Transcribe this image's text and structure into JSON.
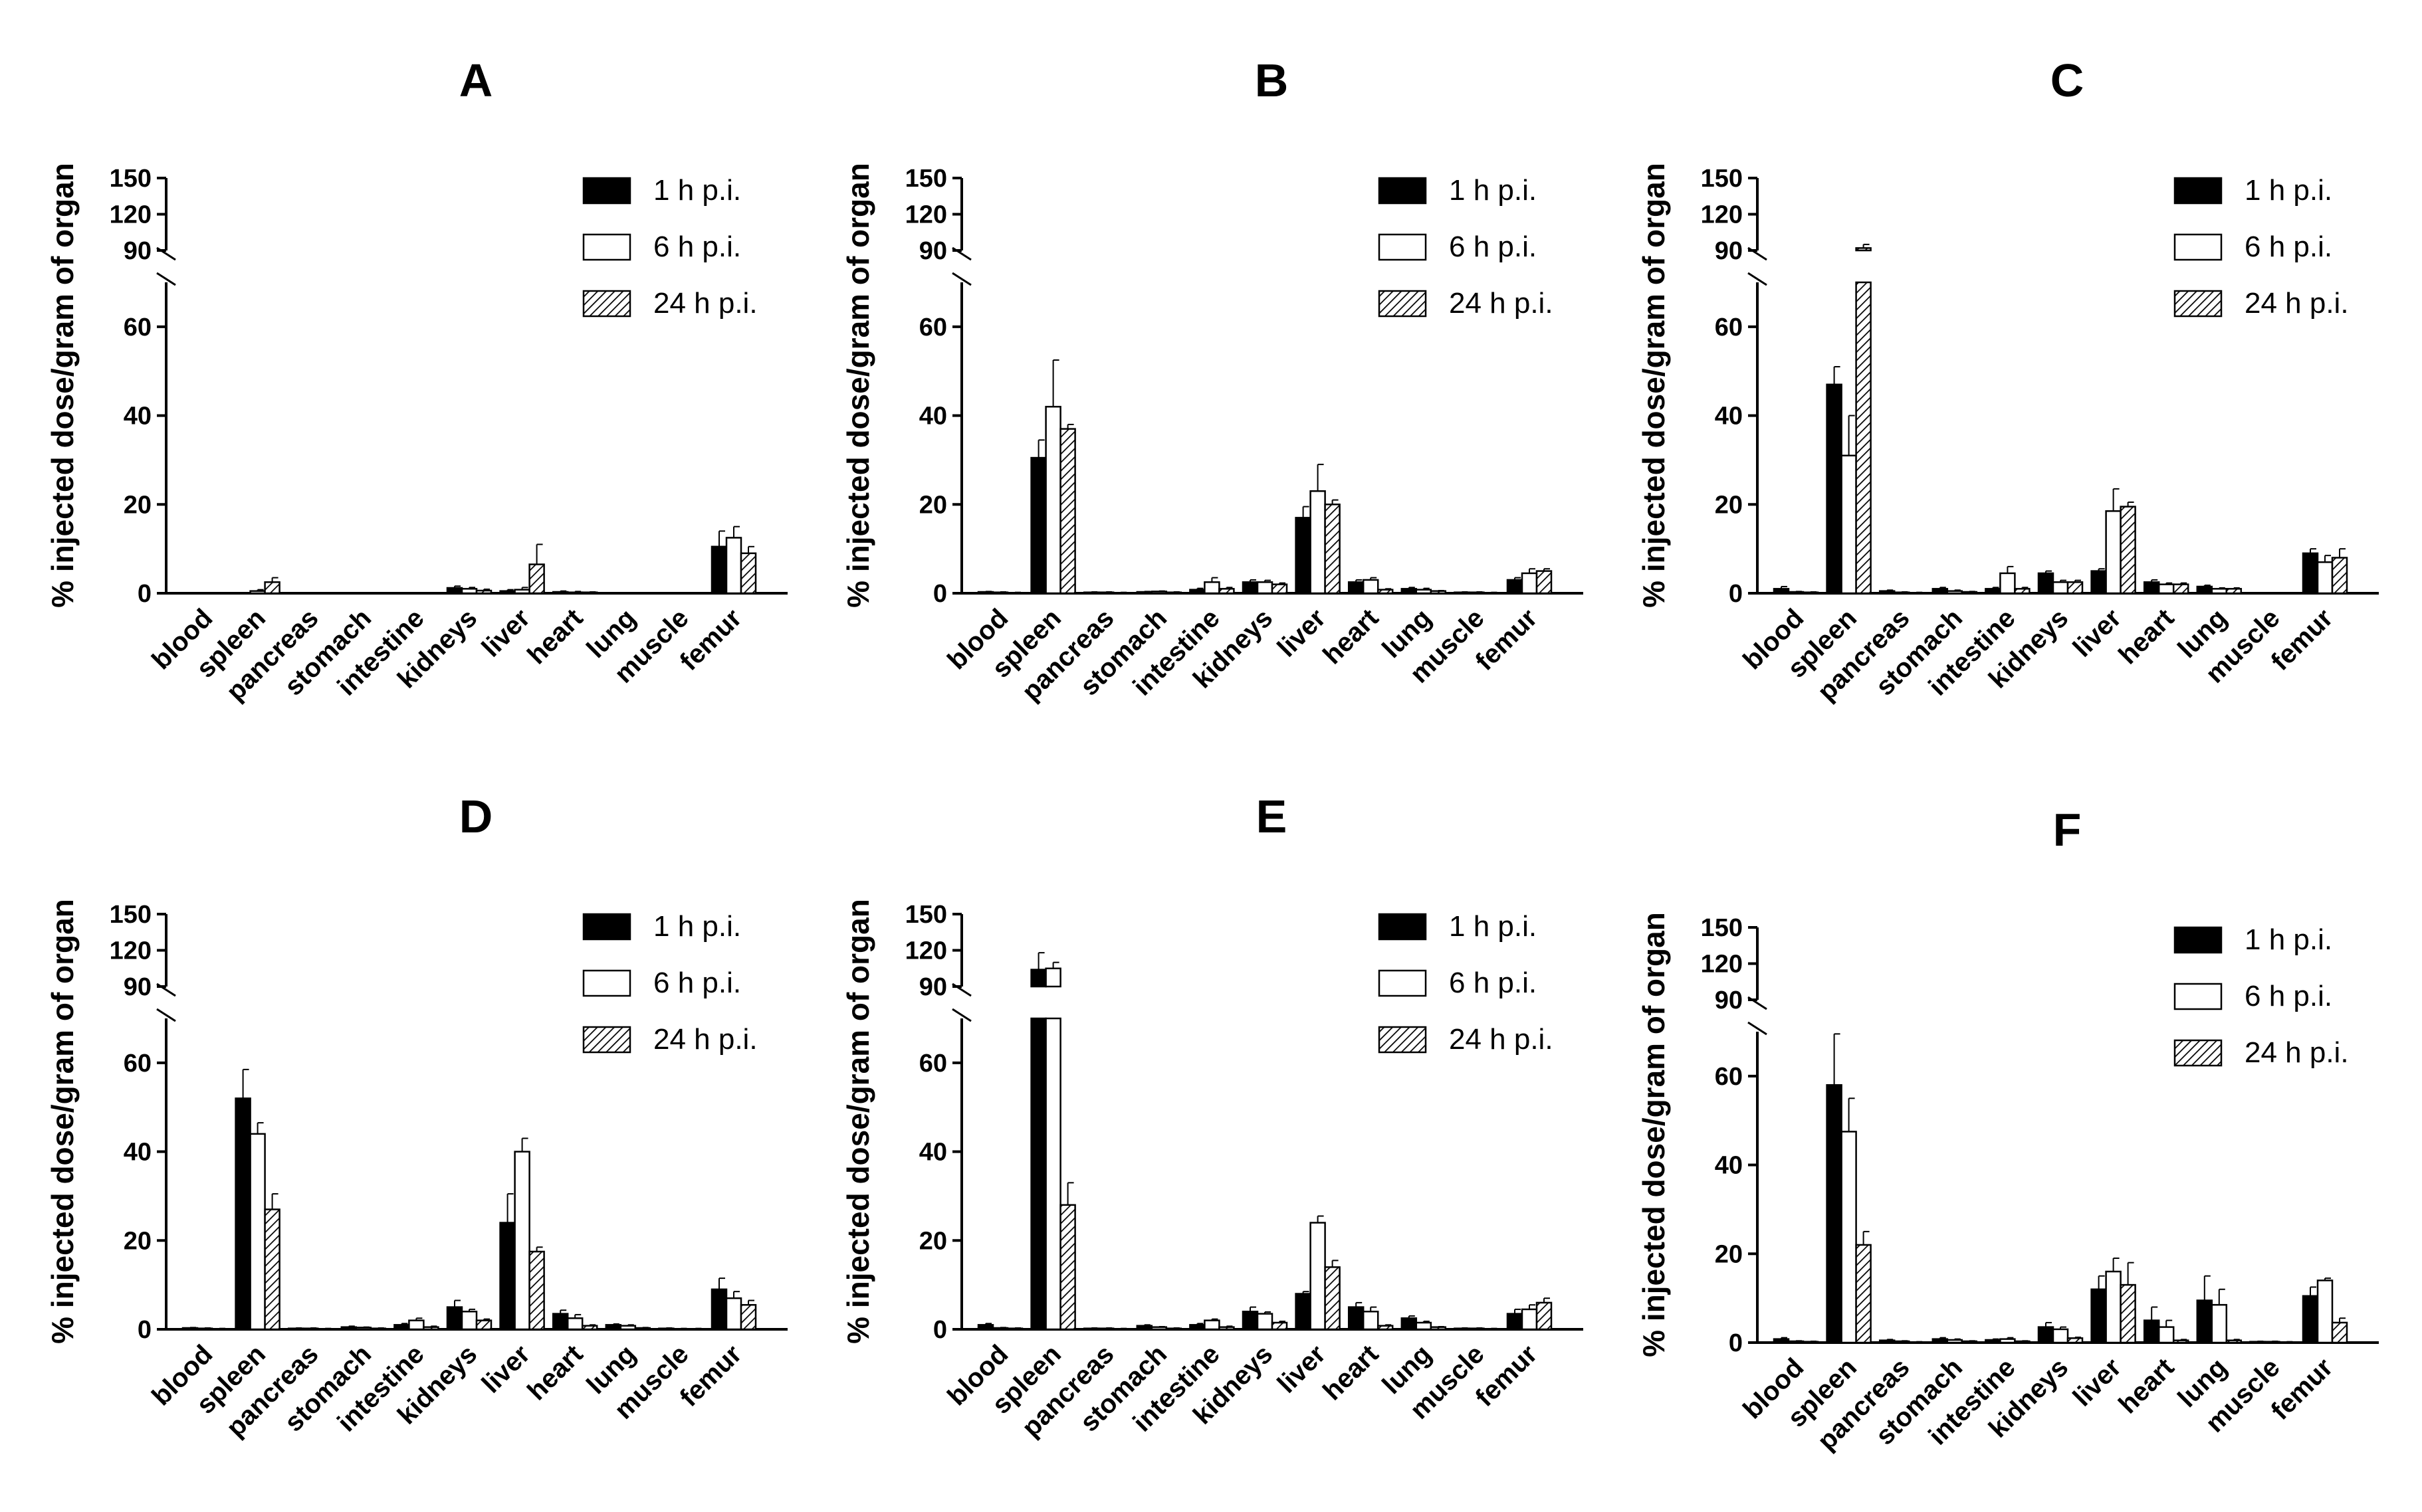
{
  "chart_data": [
    {
      "type": "bar",
      "title": "A",
      "ylabel": "% injected dose/gram of organ",
      "categories": [
        "blood",
        "spleen",
        "pancreas",
        "stomach",
        "intestine",
        "kidneys",
        "liver",
        "heart",
        "lung",
        "muscle",
        "femur"
      ],
      "ylim_lower": [
        0,
        70
      ],
      "ylim_upper": [
        90,
        150
      ],
      "yticks_lower": [
        "0",
        "20",
        "40",
        "60"
      ],
      "yticks_upper": [
        "90",
        "120",
        "150"
      ],
      "series": [
        {
          "name": "1 h p.i.",
          "values": [
            0,
            0,
            0,
            0,
            0,
            1.2,
            0.5,
            0.3,
            0,
            0,
            10.5
          ],
          "errors": [
            0,
            0,
            0,
            0,
            0,
            0.4,
            0.3,
            0.2,
            0,
            0,
            3.5
          ]
        },
        {
          "name": "6 h p.i.",
          "values": [
            0,
            0.5,
            0,
            0,
            0,
            1.0,
            0.8,
            0.2,
            0,
            0,
            12.5
          ],
          "errors": [
            0,
            0.3,
            0,
            0,
            0,
            0.3,
            0.5,
            0.2,
            0,
            0,
            2.5
          ]
        },
        {
          "name": "24 h p.i.",
          "values": [
            0,
            2.5,
            0,
            0,
            0,
            0.6,
            6.5,
            0.2,
            0,
            0,
            9.0
          ],
          "errors": [
            0,
            1.0,
            0,
            0,
            0,
            0.3,
            4.5,
            0.1,
            0,
            0,
            1.5
          ]
        }
      ]
    },
    {
      "type": "bar",
      "title": "B",
      "ylabel": "% injected dose/gram of organ",
      "categories": [
        "blood",
        "spleen",
        "pancreas",
        "stomach",
        "intestine",
        "kidneys",
        "liver",
        "heart",
        "lung",
        "muscle",
        "femur"
      ],
      "ylim_lower": [
        0,
        70
      ],
      "ylim_upper": [
        90,
        150
      ],
      "yticks_lower": [
        "0",
        "20",
        "40",
        "60"
      ],
      "yticks_upper": [
        "90",
        "120",
        "150"
      ],
      "series": [
        {
          "name": "1 h p.i.",
          "values": [
            0.3,
            30.5,
            0.2,
            0.3,
            0.8,
            2.5,
            17.0,
            2.5,
            1.0,
            0.2,
            3.0
          ],
          "errors": [
            0.1,
            4.0,
            0.1,
            0.1,
            0.3,
            0.5,
            2.5,
            0.5,
            0.3,
            0.1,
            0.5
          ]
        },
        {
          "name": "6 h p.i.",
          "values": [
            0.2,
            42.0,
            0.2,
            0.4,
            2.5,
            2.5,
            23.0,
            3.0,
            0.8,
            0.2,
            4.5
          ],
          "errors": [
            0.1,
            10.5,
            0.1,
            0.1,
            1.0,
            0.4,
            6.0,
            0.5,
            0.3,
            0.1,
            1.0
          ]
        },
        {
          "name": "24 h p.i.",
          "values": [
            0.1,
            37.0,
            0.1,
            0.2,
            1.0,
            2.0,
            20.0,
            0.8,
            0.5,
            0.1,
            5.0
          ],
          "errors": [
            0.1,
            1.0,
            0.1,
            0.1,
            0.3,
            0.3,
            1.0,
            0.2,
            0.1,
            0.1,
            0.5
          ]
        }
      ]
    },
    {
      "type": "bar",
      "title": "C",
      "ylabel": "% injected dose/gram of organ",
      "categories": [
        "blood",
        "spleen",
        "pancreas",
        "stomach",
        "intestine",
        "kidneys",
        "liver",
        "heart",
        "lung",
        "muscle",
        "femur"
      ],
      "ylim_lower": [
        0,
        70
      ],
      "ylim_upper": [
        90,
        150
      ],
      "yticks_lower": [
        "0",
        "20",
        "40",
        "60"
      ],
      "yticks_upper": [
        "90",
        "120",
        "150"
      ],
      "series": [
        {
          "name": "1 h p.i.",
          "values": [
            1.0,
            47.0,
            0.5,
            1.0,
            1.0,
            4.5,
            5.0,
            2.5,
            1.5,
            0,
            9.0
          ],
          "errors": [
            0.5,
            4.0,
            0.2,
            0.3,
            0.3,
            0.5,
            0.5,
            0.5,
            0.3,
            0,
            1.0
          ]
        },
        {
          "name": "6 h p.i.",
          "values": [
            0.3,
            31.0,
            0.2,
            0.5,
            4.5,
            2.5,
            18.5,
            2.0,
            1.0,
            0,
            7.0
          ],
          "errors": [
            0.1,
            9.0,
            0.1,
            0.2,
            1.5,
            0.4,
            5.0,
            0.3,
            0.2,
            0,
            1.5
          ]
        },
        {
          "name": "24 h p.i.",
          "values": [
            0.2,
            92.0,
            0.1,
            0.3,
            1.0,
            2.5,
            19.5,
            2.0,
            1.0,
            0,
            8.0
          ],
          "errors": [
            0.1,
            3.0,
            0.1,
            0.1,
            0.3,
            0.4,
            1.0,
            0.3,
            0.2,
            0,
            2.0
          ]
        }
      ]
    },
    {
      "type": "bar",
      "title": "D",
      "ylabel": "% injected dose/gram of organ",
      "categories": [
        "blood",
        "spleen",
        "pancreas",
        "stomach",
        "intestine",
        "kidneys",
        "liver",
        "heart",
        "lung",
        "muscle",
        "femur"
      ],
      "ylim_lower": [
        0,
        70
      ],
      "ylim_upper": [
        90,
        150
      ],
      "yticks_lower": [
        "0",
        "20",
        "40",
        "60"
      ],
      "yticks_upper": [
        "90",
        "120",
        "150"
      ],
      "series": [
        {
          "name": "1 h p.i.",
          "values": [
            0.3,
            52.0,
            0.2,
            0.5,
            1.0,
            5.0,
            24.0,
            3.5,
            1.0,
            0.2,
            9.0
          ],
          "errors": [
            0.1,
            6.5,
            0.1,
            0.2,
            0.3,
            1.5,
            6.5,
            0.8,
            0.2,
            0.1,
            2.5
          ]
        },
        {
          "name": "6 h p.i.",
          "values": [
            0.2,
            44.0,
            0.2,
            0.4,
            2.0,
            4.0,
            40.0,
            2.5,
            0.8,
            0.1,
            7.0
          ],
          "errors": [
            0.1,
            2.5,
            0.1,
            0.1,
            0.5,
            0.5,
            3.0,
            0.8,
            0.2,
            0.1,
            1.5
          ]
        },
        {
          "name": "24 h p.i.",
          "values": [
            0.1,
            27.0,
            0.1,
            0.2,
            0.5,
            2.0,
            17.5,
            0.8,
            0.3,
            0.1,
            5.5
          ],
          "errors": [
            0.1,
            3.5,
            0.1,
            0.1,
            0.2,
            0.3,
            1.0,
            0.2,
            0.1,
            0.1,
            1.0
          ]
        }
      ]
    },
    {
      "type": "bar",
      "title": "E",
      "ylabel": "% injected dose/gram of organ",
      "categories": [
        "blood",
        "spleen",
        "pancreas",
        "stomach",
        "intestine",
        "kidneys",
        "liver",
        "heart",
        "lung",
        "muscle",
        "femur"
      ],
      "ylim_lower": [
        0,
        70
      ],
      "ylim_upper": [
        90,
        150
      ],
      "yticks_lower": [
        "0",
        "20",
        "40",
        "60"
      ],
      "yticks_upper": [
        "90",
        "120",
        "150"
      ],
      "series": [
        {
          "name": "1 h p.i.",
          "values": [
            1.0,
            104.0,
            0.2,
            0.8,
            1.0,
            4.0,
            8.0,
            5.0,
            2.5,
            0.2,
            3.5
          ],
          "errors": [
            0.3,
            14.0,
            0.1,
            0.2,
            0.3,
            1.0,
            0.5,
            1.0,
            0.5,
            0.1,
            1.0
          ]
        },
        {
          "name": "6 h p.i.",
          "values": [
            0.3,
            105.0,
            0.2,
            0.5,
            2.0,
            3.5,
            24.0,
            4.0,
            1.5,
            0.2,
            4.5
          ],
          "errors": [
            0.1,
            5.0,
            0.1,
            0.1,
            0.3,
            0.4,
            1.5,
            1.0,
            0.3,
            0.1,
            1.0
          ]
        },
        {
          "name": "24 h p.i.",
          "values": [
            0.2,
            28.0,
            0.1,
            0.2,
            0.5,
            1.5,
            14.0,
            0.8,
            0.5,
            0.1,
            6.0
          ],
          "errors": [
            0.1,
            5.0,
            0.1,
            0.1,
            0.2,
            0.3,
            1.5,
            0.2,
            0.1,
            0.1,
            1.0
          ]
        }
      ]
    },
    {
      "type": "bar",
      "title": "F",
      "ylabel": "% injected dose/gram of organ",
      "categories": [
        "blood",
        "spleen",
        "pancreas",
        "stomach",
        "intestine",
        "kidneys",
        "liver",
        "heart",
        "lung",
        "muscle",
        "femur"
      ],
      "ylim_lower": [
        0,
        70
      ],
      "ylim_upper": [
        90,
        150
      ],
      "yticks_lower": [
        "0",
        "20",
        "40",
        "60"
      ],
      "yticks_upper": [
        "90",
        "120",
        "150"
      ],
      "series": [
        {
          "name": "1 h p.i.",
          "values": [
            0.8,
            58.0,
            0.5,
            0.8,
            0.6,
            3.5,
            12.0,
            5.0,
            9.5,
            0.2,
            10.5
          ],
          "errors": [
            0.3,
            11.5,
            0.2,
            0.3,
            0.2,
            1.0,
            3.0,
            3.0,
            5.5,
            0.1,
            2.0
          ]
        },
        {
          "name": "6 h p.i.",
          "values": [
            0.3,
            47.5,
            0.3,
            0.6,
            0.8,
            3.0,
            16.0,
            3.5,
            8.5,
            0.2,
            14.0
          ],
          "errors": [
            0.1,
            7.5,
            0.1,
            0.2,
            0.3,
            0.5,
            3.0,
            1.5,
            3.5,
            0.1,
            0.5
          ]
        },
        {
          "name": "24 h p.i.",
          "values": [
            0.2,
            22.0,
            0.1,
            0.3,
            0.3,
            1.0,
            13.0,
            0.5,
            0.5,
            0.1,
            4.5
          ],
          "errors": [
            0.1,
            3.0,
            0.1,
            0.1,
            0.1,
            0.2,
            5.0,
            0.2,
            0.2,
            0.1,
            1.0
          ]
        }
      ]
    }
  ]
}
